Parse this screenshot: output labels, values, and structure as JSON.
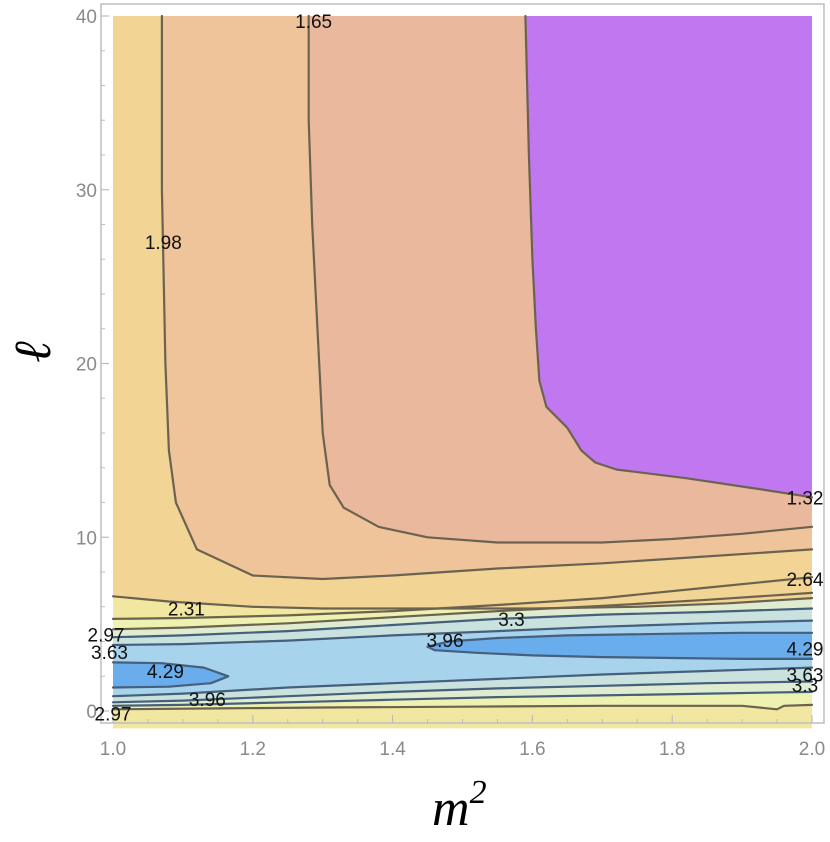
{
  "chart_data": {
    "type": "contour",
    "xlabel": "m",
    "xlabel_superscript": "2",
    "ylabel": "ℓ",
    "xlim": [
      1.0,
      2.0
    ],
    "ylim": [
      0,
      40
    ],
    "x_ticks": [
      {
        "value": 1.0,
        "label": "1.0"
      },
      {
        "value": 1.2,
        "label": "1.2"
      },
      {
        "value": 1.4,
        "label": "1.4"
      },
      {
        "value": 1.6,
        "label": "1.6"
      },
      {
        "value": 1.8,
        "label": "1.8"
      },
      {
        "value": 2.0,
        "label": "2.0"
      }
    ],
    "y_ticks": [
      {
        "value": 0,
        "label": "0"
      },
      {
        "value": 10,
        "label": "10"
      },
      {
        "value": 20,
        "label": "20"
      },
      {
        "value": 30,
        "label": "30"
      },
      {
        "value": 40,
        "label": "40"
      }
    ],
    "colors": {
      "purple": "#c077f0",
      "salmon": "#e9b89d",
      "orange_light": "#f0c49a",
      "tan": "#f2d494",
      "yellow": "#f1e7a0",
      "yellow_pale": "#eef2b0",
      "green_pale": "#dfeccf",
      "cyan_pale": "#c9e2de",
      "blue_light": "#a8d3ec",
      "blue": "#6aaded",
      "line": "#6b6350",
      "line_blue": "#455f7c",
      "frame": "#bdbdbd"
    },
    "regions": [
      {
        "level": "≤1.32",
        "color": "purple",
        "points": [
          [
            1.59,
            40
          ],
          [
            2.0,
            40
          ],
          [
            2.0,
            12.3
          ],
          [
            1.92,
            12.8
          ],
          [
            1.82,
            13.4
          ],
          [
            1.72,
            13.9
          ],
          [
            1.69,
            14.3
          ],
          [
            1.67,
            15.0
          ],
          [
            1.65,
            16.3
          ],
          [
            1.62,
            17.5
          ],
          [
            1.61,
            19.0
          ],
          [
            1.605,
            22
          ],
          [
            1.6,
            26
          ],
          [
            1.595,
            32
          ],
          [
            1.59,
            40
          ]
        ]
      },
      {
        "level": "1.98",
        "color": "tan",
        "points": [
          [
            1.0,
            40
          ],
          [
            1.07,
            40
          ],
          [
            1.07,
            30
          ],
          [
            1.075,
            20
          ],
          [
            1.08,
            15
          ],
          [
            1.09,
            12
          ],
          [
            1.12,
            9.3
          ],
          [
            1.2,
            7.8
          ],
          [
            1.3,
            7.6
          ],
          [
            1.4,
            7.8
          ],
          [
            1.55,
            8.2
          ],
          [
            1.7,
            8.5
          ],
          [
            1.85,
            8.9
          ],
          [
            2.0,
            9.3
          ],
          [
            2.0,
            6.5
          ],
          [
            1.88,
            6.2
          ],
          [
            1.75,
            6.0
          ],
          [
            1.6,
            5.9
          ],
          [
            1.45,
            5.9
          ],
          [
            1.3,
            5.9
          ],
          [
            1.2,
            6.0
          ],
          [
            1.08,
            6.3
          ],
          [
            1.0,
            6.6
          ]
        ]
      },
      {
        "level": "1.65",
        "color": "orange_light",
        "points": [
          [
            1.07,
            40
          ],
          [
            1.28,
            40
          ],
          [
            1.28,
            34
          ],
          [
            1.285,
            28
          ],
          [
            1.29,
            24
          ],
          [
            1.295,
            20
          ],
          [
            1.3,
            16
          ],
          [
            1.31,
            13
          ],
          [
            1.33,
            11.7
          ],
          [
            1.38,
            10.6
          ],
          [
            1.45,
            10.0
          ],
          [
            1.55,
            9.7
          ],
          [
            1.7,
            9.7
          ],
          [
            1.8,
            9.9
          ],
          [
            1.9,
            10.2
          ],
          [
            2.0,
            10.6
          ],
          [
            2.0,
            9.3
          ],
          [
            1.85,
            8.9
          ],
          [
            1.7,
            8.5
          ],
          [
            1.55,
            8.2
          ],
          [
            1.4,
            7.8
          ],
          [
            1.3,
            7.6
          ],
          [
            1.2,
            7.8
          ],
          [
            1.12,
            9.3
          ],
          [
            1.09,
            12
          ],
          [
            1.08,
            15
          ],
          [
            1.075,
            20
          ],
          [
            1.07,
            30
          ],
          [
            1.07,
            40
          ]
        ]
      },
      {
        "level": "1.32",
        "color": "salmon",
        "points": [
          [
            1.28,
            40
          ],
          [
            1.59,
            40
          ],
          [
            1.595,
            32
          ],
          [
            1.6,
            26
          ],
          [
            1.605,
            22
          ],
          [
            1.61,
            19.0
          ],
          [
            1.62,
            17.5
          ],
          [
            1.65,
            16.3
          ],
          [
            1.67,
            15.0
          ],
          [
            1.69,
            14.3
          ],
          [
            1.72,
            13.9
          ],
          [
            1.82,
            13.4
          ],
          [
            1.92,
            12.8
          ],
          [
            2.0,
            12.3
          ],
          [
            2.0,
            10.6
          ],
          [
            1.9,
            10.2
          ],
          [
            1.8,
            9.9
          ],
          [
            1.7,
            9.7
          ],
          [
            1.55,
            9.7
          ],
          [
            1.45,
            10.0
          ],
          [
            1.38,
            10.6
          ],
          [
            1.33,
            11.7
          ],
          [
            1.31,
            13
          ],
          [
            1.3,
            16
          ],
          [
            1.295,
            20
          ],
          [
            1.29,
            24
          ],
          [
            1.285,
            28
          ],
          [
            1.28,
            34
          ],
          [
            1.28,
            40
          ]
        ]
      },
      {
        "level": "4.29",
        "color": "blue",
        "points": [
          [
            1.45,
            3.7
          ],
          [
            1.48,
            4.0
          ],
          [
            1.55,
            4.2
          ],
          [
            1.65,
            4.35
          ],
          [
            1.8,
            4.45
          ],
          [
            1.9,
            4.5
          ],
          [
            2.0,
            4.5
          ],
          [
            2.0,
            3.0
          ],
          [
            1.9,
            3.0
          ],
          [
            1.8,
            3.05
          ],
          [
            1.7,
            3.1
          ],
          [
            1.6,
            3.2
          ],
          [
            1.52,
            3.35
          ],
          [
            1.46,
            3.5
          ]
        ]
      },
      {
        "level": "4.29",
        "color": "blue",
        "points": [
          [
            1.0,
            2.8
          ],
          [
            1.07,
            2.75
          ],
          [
            1.13,
            2.5
          ],
          [
            1.165,
            2.0
          ],
          [
            1.14,
            1.6
          ],
          [
            1.08,
            1.4
          ],
          [
            1.0,
            1.35
          ]
        ]
      }
    ],
    "contours": [
      {
        "level": "1.32",
        "points": [
          [
            1.59,
            40
          ],
          [
            1.595,
            32
          ],
          [
            1.6,
            26
          ],
          [
            1.605,
            22
          ],
          [
            1.61,
            19.0
          ],
          [
            1.62,
            17.5
          ],
          [
            1.65,
            16.3
          ],
          [
            1.67,
            15.0
          ],
          [
            1.69,
            14.3
          ],
          [
            1.72,
            13.9
          ],
          [
            1.82,
            13.4
          ],
          [
            1.92,
            12.8
          ],
          [
            2.0,
            12.3
          ]
        ]
      },
      {
        "level": "1.65",
        "points": [
          [
            1.28,
            40
          ],
          [
            1.28,
            34
          ],
          [
            1.285,
            28
          ],
          [
            1.29,
            24
          ],
          [
            1.295,
            20
          ],
          [
            1.3,
            16
          ],
          [
            1.31,
            13
          ],
          [
            1.33,
            11.7
          ],
          [
            1.38,
            10.6
          ],
          [
            1.45,
            10.0
          ],
          [
            1.55,
            9.7
          ],
          [
            1.7,
            9.7
          ],
          [
            1.8,
            9.9
          ],
          [
            1.9,
            10.2
          ],
          [
            2.0,
            10.6
          ]
        ]
      },
      {
        "level": "1.98",
        "points": [
          [
            1.07,
            40
          ],
          [
            1.07,
            30
          ],
          [
            1.075,
            20
          ],
          [
            1.08,
            15
          ],
          [
            1.09,
            12
          ],
          [
            1.12,
            9.3
          ],
          [
            1.2,
            7.8
          ],
          [
            1.3,
            7.6
          ],
          [
            1.4,
            7.8
          ],
          [
            1.55,
            8.2
          ],
          [
            1.7,
            8.5
          ],
          [
            1.85,
            8.9
          ],
          [
            2.0,
            9.3
          ]
        ]
      },
      {
        "level": "2.31",
        "points": [
          [
            1.0,
            6.6
          ],
          [
            1.08,
            6.3
          ],
          [
            1.2,
            6.0
          ],
          [
            1.3,
            5.9
          ],
          [
            1.45,
            5.9
          ],
          [
            1.6,
            5.9
          ],
          [
            1.75,
            6.0
          ],
          [
            1.88,
            6.2
          ],
          [
            2.0,
            6.5
          ]
        ]
      },
      {
        "level": "2.64",
        "points": [
          [
            1.0,
            5.3
          ],
          [
            1.1,
            5.35
          ],
          [
            1.25,
            5.5
          ],
          [
            1.4,
            5.75
          ],
          [
            1.55,
            6.1
          ],
          [
            1.7,
            6.5
          ],
          [
            1.85,
            7.1
          ],
          [
            2.0,
            7.7
          ]
        ]
      },
      {
        "level": "2.97",
        "points": [
          [
            1.0,
            4.7
          ],
          [
            1.1,
            4.8
          ],
          [
            1.25,
            5.05
          ],
          [
            1.4,
            5.4
          ],
          [
            1.55,
            5.75
          ],
          [
            1.7,
            6.05
          ],
          [
            1.85,
            6.4
          ],
          [
            2.0,
            6.8
          ]
        ]
      },
      {
        "level": "3.3",
        "points": [
          [
            1.0,
            4.25
          ],
          [
            1.1,
            4.35
          ],
          [
            1.25,
            4.6
          ],
          [
            1.4,
            4.95
          ],
          [
            1.55,
            5.3
          ],
          [
            1.7,
            5.55
          ],
          [
            1.85,
            5.7
          ],
          [
            2.0,
            5.9
          ]
        ]
      },
      {
        "level": "3.63",
        "points": [
          [
            1.0,
            3.8
          ],
          [
            1.1,
            3.85
          ],
          [
            1.25,
            4.05
          ],
          [
            1.4,
            4.35
          ],
          [
            1.55,
            4.6
          ],
          [
            1.7,
            4.85
          ],
          [
            1.85,
            5.05
          ],
          [
            2.0,
            5.2
          ]
        ]
      },
      {
        "level": "3.96",
        "points": [
          [
            1.45,
            3.7
          ],
          [
            1.48,
            4.0
          ],
          [
            1.55,
            4.2
          ],
          [
            1.65,
            4.35
          ],
          [
            1.8,
            4.45
          ],
          [
            1.9,
            4.5
          ],
          [
            2.0,
            4.5
          ]
        ]
      },
      {
        "level": "3.96",
        "points": [
          [
            2.0,
            3.0
          ],
          [
            1.9,
            3.0
          ],
          [
            1.8,
            3.05
          ],
          [
            1.7,
            3.1
          ],
          [
            1.6,
            3.2
          ],
          [
            1.52,
            3.35
          ],
          [
            1.46,
            3.5
          ],
          [
            1.45,
            3.7
          ]
        ]
      },
      {
        "level": "4.29",
        "points": [
          [
            1.0,
            2.8
          ],
          [
            1.07,
            2.75
          ],
          [
            1.13,
            2.5
          ],
          [
            1.165,
            2.0
          ],
          [
            1.14,
            1.6
          ],
          [
            1.08,
            1.4
          ],
          [
            1.0,
            1.35
          ]
        ]
      },
      {
        "level": "3.96",
        "points": [
          [
            1.0,
            0.85
          ],
          [
            1.1,
            1.0
          ],
          [
            1.25,
            1.35
          ],
          [
            1.4,
            1.6
          ],
          [
            1.55,
            1.85
          ],
          [
            1.7,
            2.1
          ],
          [
            1.85,
            2.3
          ],
          [
            2.0,
            2.5
          ]
        ]
      },
      {
        "level": "3.63",
        "points": [
          [
            1.0,
            0.5
          ],
          [
            1.1,
            0.6
          ],
          [
            1.25,
            0.85
          ],
          [
            1.4,
            1.1
          ],
          [
            1.55,
            1.3
          ],
          [
            1.7,
            1.45
          ],
          [
            1.85,
            1.6
          ],
          [
            2.0,
            1.7
          ]
        ]
      },
      {
        "level": "3.3",
        "points": [
          [
            1.0,
            0.3
          ],
          [
            1.1,
            0.35
          ],
          [
            1.25,
            0.5
          ],
          [
            1.4,
            0.65
          ],
          [
            1.55,
            0.8
          ],
          [
            1.7,
            0.9
          ],
          [
            1.85,
            1.0
          ],
          [
            2.0,
            1.1
          ]
        ]
      },
      {
        "level": "2.97",
        "points": [
          [
            1.0,
            0.1
          ],
          [
            1.15,
            0.15
          ],
          [
            1.3,
            0.2
          ],
          [
            1.5,
            0.25
          ],
          [
            1.7,
            0.3
          ],
          [
            1.9,
            0.3
          ],
          [
            1.95,
            0.1
          ],
          [
            1.96,
            0.3
          ],
          [
            2.0,
            0.35
          ]
        ]
      }
    ],
    "contour_labels": [
      {
        "text": "1.65",
        "x": 1.287,
        "y": 39.7
      },
      {
        "text": "1.98",
        "x": 1.072,
        "y": 27.0
      },
      {
        "text": "1.32",
        "x": 1.99,
        "y": 12.3
      },
      {
        "text": "2.64",
        "x": 1.99,
        "y": 7.6
      },
      {
        "text": "2.31",
        "x": 1.105,
        "y": 5.9
      },
      {
        "text": "3.3",
        "x": 1.57,
        "y": 5.3
      },
      {
        "text": "2.97",
        "x": 0.99,
        "y": 4.4
      },
      {
        "text": "3.96",
        "x": 1.475,
        "y": 4.1
      },
      {
        "text": "3.63",
        "x": 0.995,
        "y": 3.4
      },
      {
        "text": "4.29",
        "x": 1.99,
        "y": 3.6
      },
      {
        "text": "4.29",
        "x": 1.075,
        "y": 2.3
      },
      {
        "text": "3.63",
        "x": 1.99,
        "y": 2.1
      },
      {
        "text": "3.96",
        "x": 1.135,
        "y": 0.7
      },
      {
        "text": "3.3",
        "x": 1.99,
        "y": 1.5
      },
      {
        "text": "2.97",
        "x": 1.0,
        "y": -0.15
      }
    ]
  }
}
